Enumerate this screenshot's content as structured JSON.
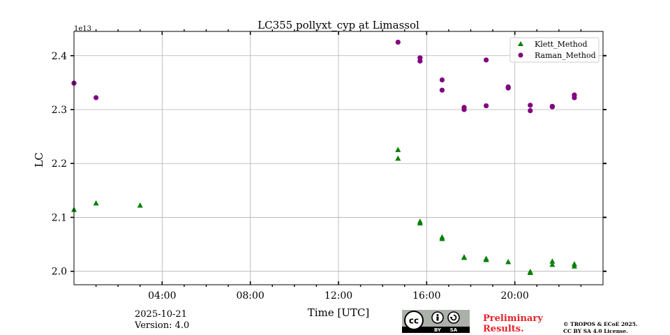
{
  "chart_data": {
    "type": "scatter",
    "title": "LC355 pollyxt_cyp at Limassol",
    "xlabel": "Time [UTC]",
    "ylabel": "LC",
    "y_offset_label": "1e13",
    "xlim": [
      0,
      24
    ],
    "ylim": [
      1.975,
      2.445
    ],
    "x_ticks": [
      {
        "value": 4,
        "label": "04:00"
      },
      {
        "value": 8,
        "label": "08:00"
      },
      {
        "value": 12,
        "label": "12:00"
      },
      {
        "value": 16,
        "label": "16:00"
      },
      {
        "value": 20,
        "label": "20:00"
      }
    ],
    "y_ticks": [
      {
        "value": 2.0,
        "label": "2.0"
      },
      {
        "value": 2.1,
        "label": "2.1"
      },
      {
        "value": 2.2,
        "label": "2.2"
      },
      {
        "value": 2.3,
        "label": "2.3"
      },
      {
        "value": 2.4,
        "label": "2.4"
      }
    ],
    "grid": true,
    "legend_position": "top-right",
    "series": [
      {
        "name": "Klett_Method",
        "marker": "triangle",
        "color": "#008000",
        "points": [
          [
            0.0,
            2.114
          ],
          [
            1.0,
            2.126
          ],
          [
            3.0,
            2.122
          ],
          [
            14.7,
            2.225
          ],
          [
            14.7,
            2.209
          ],
          [
            15.7,
            2.092
          ],
          [
            15.7,
            2.089
          ],
          [
            16.7,
            2.063
          ],
          [
            16.7,
            2.06
          ],
          [
            17.7,
            2.026
          ],
          [
            17.7,
            2.025
          ],
          [
            18.7,
            2.023
          ],
          [
            18.7,
            2.021
          ],
          [
            19.7,
            2.017
          ],
          [
            20.7,
            1.999
          ],
          [
            20.7,
            1.997
          ],
          [
            21.7,
            2.018
          ],
          [
            21.7,
            2.012
          ],
          [
            22.7,
            2.013
          ],
          [
            22.7,
            2.009
          ]
        ]
      },
      {
        "name": "Raman_Method",
        "marker": "circle",
        "color": "#800080",
        "points": [
          [
            0.0,
            2.349
          ],
          [
            1.0,
            2.322
          ],
          [
            14.7,
            2.425
          ],
          [
            15.7,
            2.396
          ],
          [
            15.7,
            2.39
          ],
          [
            16.7,
            2.355
          ],
          [
            16.7,
            2.336
          ],
          [
            17.7,
            2.304
          ],
          [
            17.7,
            2.3
          ],
          [
            18.7,
            2.392
          ],
          [
            18.7,
            2.307
          ],
          [
            19.7,
            2.342
          ],
          [
            19.7,
            2.34
          ],
          [
            20.7,
            2.308
          ],
          [
            20.7,
            2.298
          ],
          [
            21.7,
            2.306
          ],
          [
            21.7,
            2.305
          ],
          [
            22.7,
            2.327
          ],
          [
            22.7,
            2.322
          ]
        ]
      }
    ]
  },
  "footer": {
    "date": "2025-10-21",
    "version": "Version: 4.0",
    "preliminary_line1": "Preliminary",
    "preliminary_line2": "Results.",
    "copyright_line1": "© TROPOS & ECoE 2025.",
    "copyright_line2": "CC BY SA 4.0 License.",
    "license_logo_text": "cc",
    "license_by": "BY",
    "license_sa": "SA"
  }
}
